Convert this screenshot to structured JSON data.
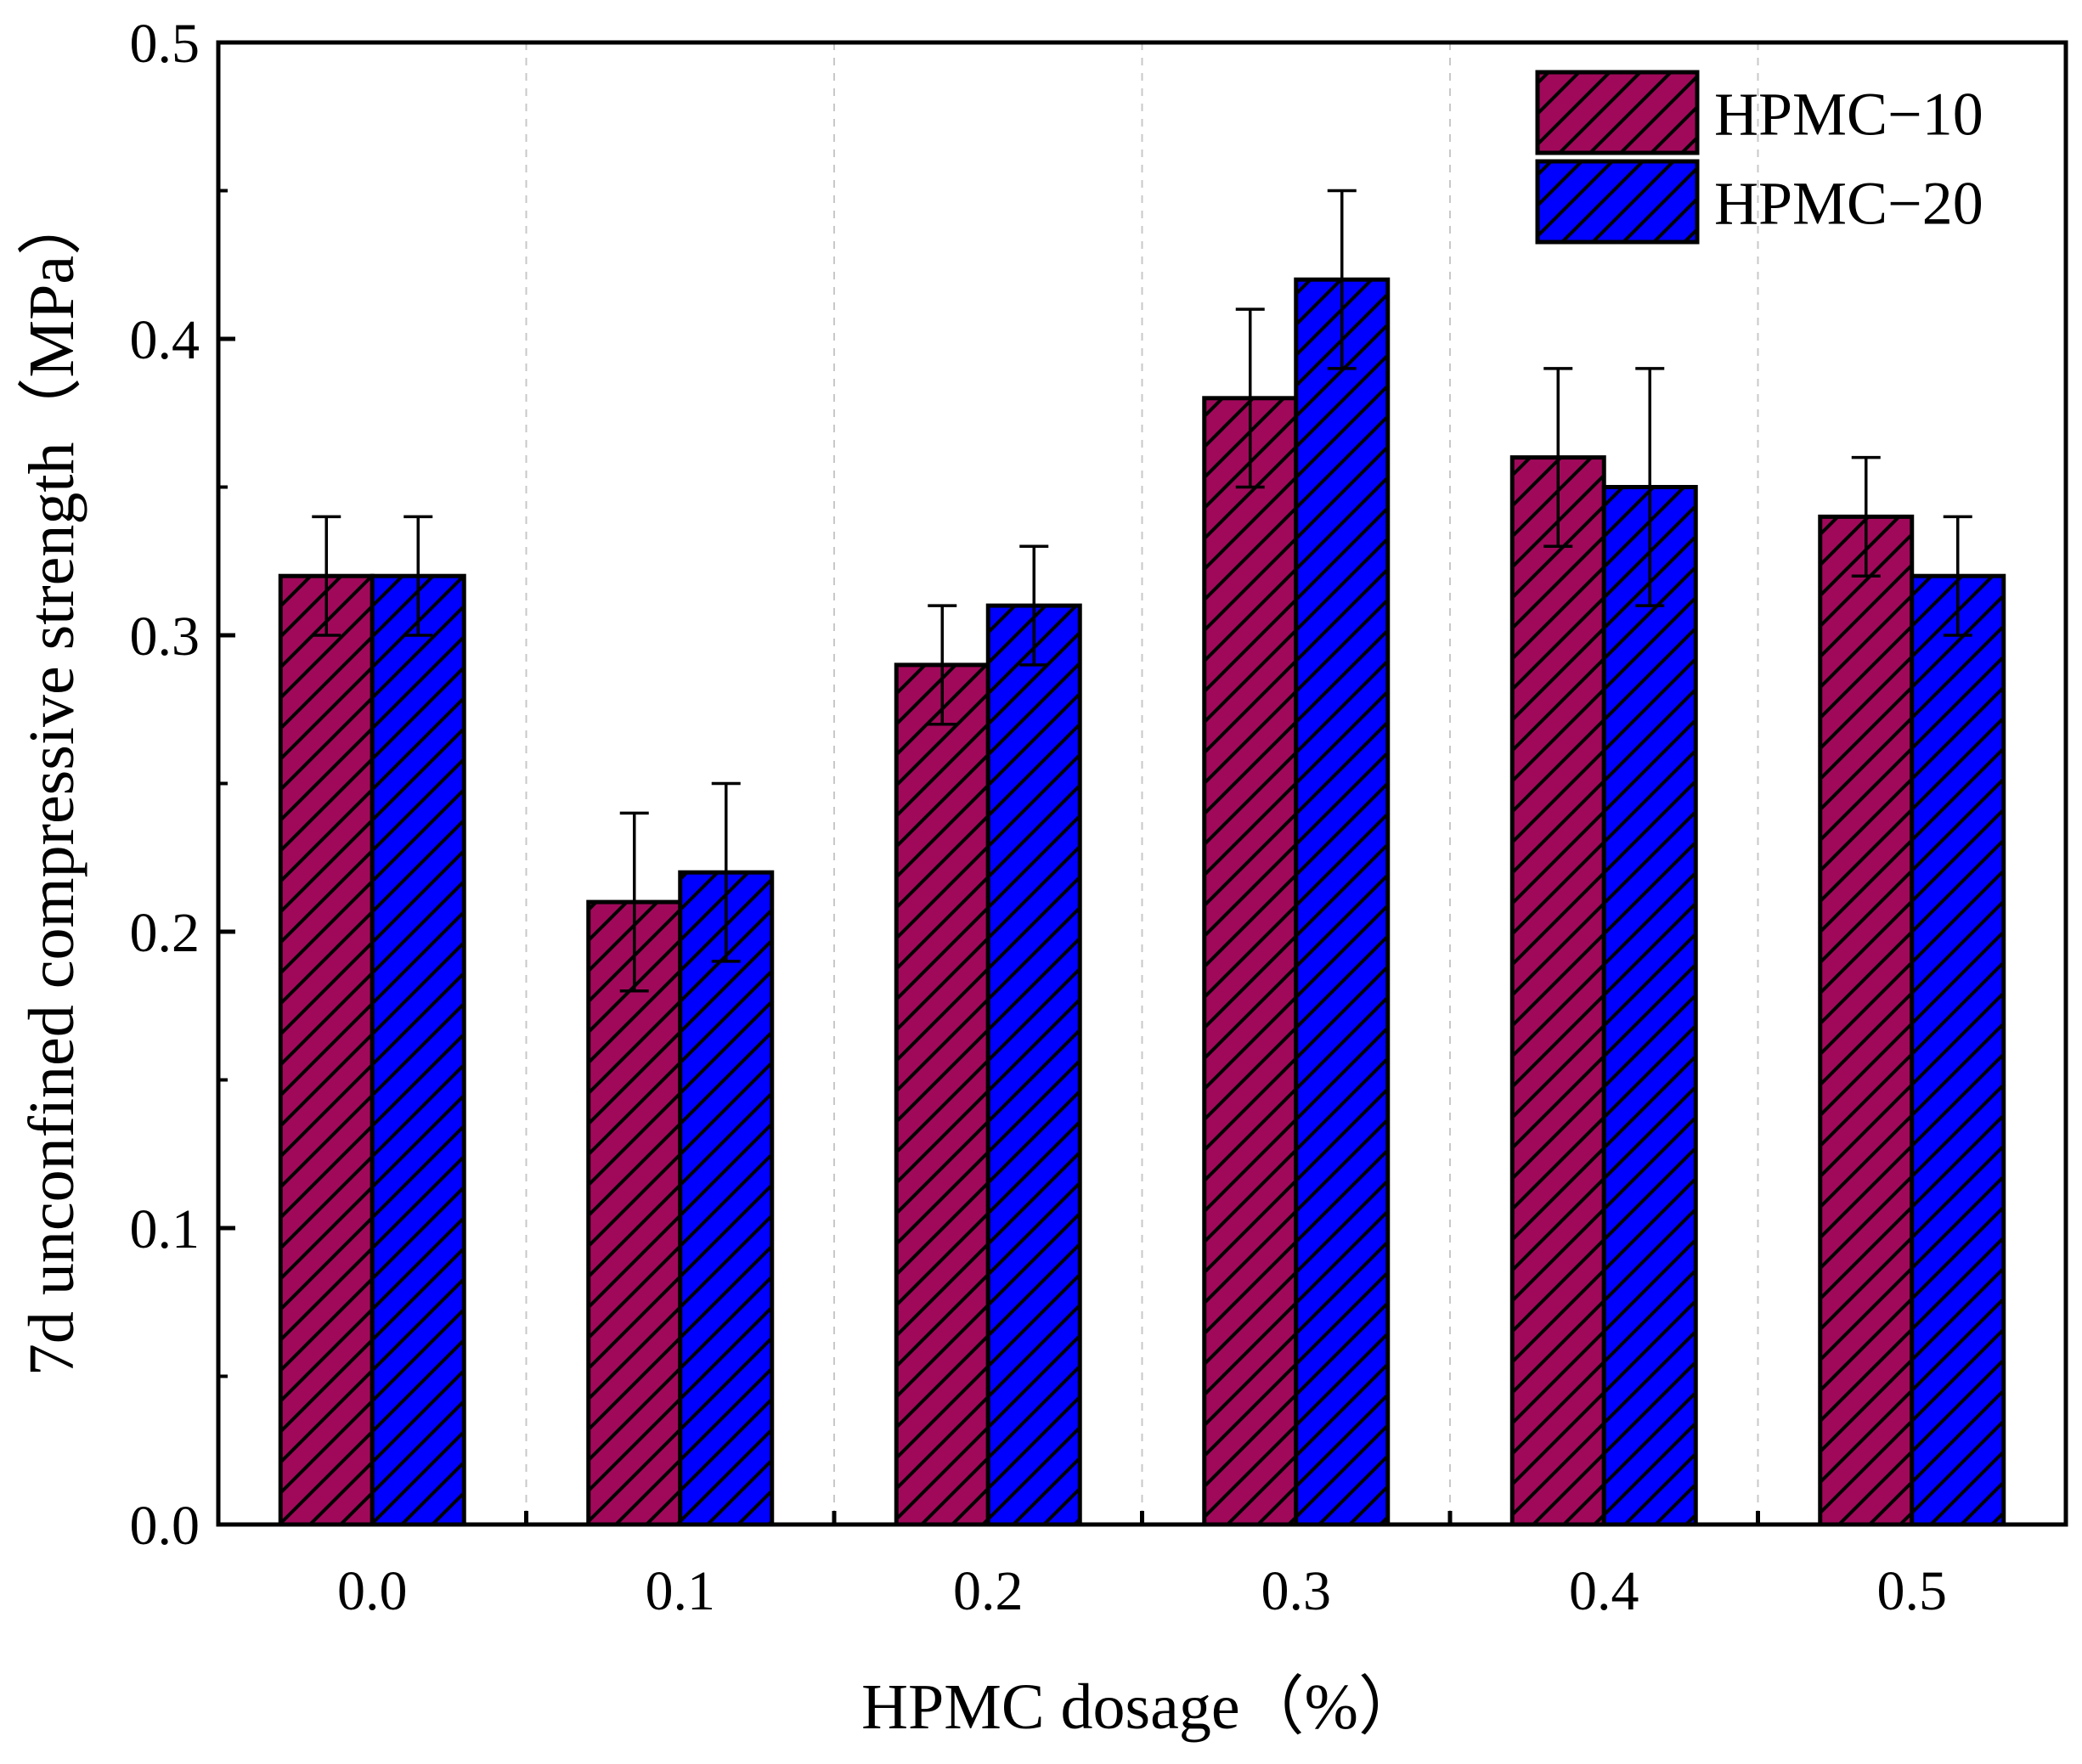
{
  "chart_data": {
    "type": "bar",
    "title": "",
    "xlabel": "HPMC dosage（%）",
    "ylabel": "7d unconfined compressive strength（MPa）",
    "categories": [
      "0.0",
      "0.1",
      "0.2",
      "0.3",
      "0.4",
      "0.5"
    ],
    "ylim": [
      0,
      0.5
    ],
    "yticks": [
      "0.0",
      "0.1",
      "0.2",
      "0.3",
      "0.4",
      "0.5"
    ],
    "grid": "vertical dashed separators between groups",
    "legend_position": "top-right",
    "bar_pattern": "diagonal hatch",
    "series": [
      {
        "name": "HPMC-10",
        "label": "HPMC−10",
        "color": "#a0095a",
        "values": [
          0.32,
          0.21,
          0.29,
          0.38,
          0.36,
          0.34
        ],
        "errors": [
          0.02,
          0.03,
          0.02,
          0.03,
          0.03,
          0.02
        ]
      },
      {
        "name": "HPMC-20",
        "label": "HPMC−20",
        "color": "#0000ff",
        "values": [
          0.32,
          0.22,
          0.31,
          0.42,
          0.35,
          0.32
        ],
        "errors": [
          0.02,
          0.03,
          0.02,
          0.03,
          0.04,
          0.02
        ]
      }
    ]
  }
}
